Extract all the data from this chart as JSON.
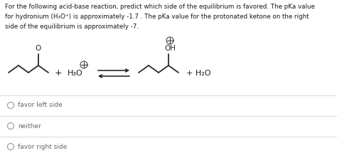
{
  "background_color": "#ffffff",
  "text_color": "#1a1a1a",
  "gray_text_color": "#666666",
  "line_color": "#cccccc",
  "paragraph_lines": [
    "For the following acid-base reaction, predict which side of the equilibrium is favored. The pKa value",
    "for hydronium (H₃O⁺) is approximately -1.7 . The pKa value for the protonated ketone on the right",
    "side of the equilibrium is approximately -7."
  ],
  "options": [
    "favor left side",
    "neither",
    "favor right side"
  ],
  "fig_width": 4.74,
  "fig_height": 2.22,
  "dpi": 100
}
